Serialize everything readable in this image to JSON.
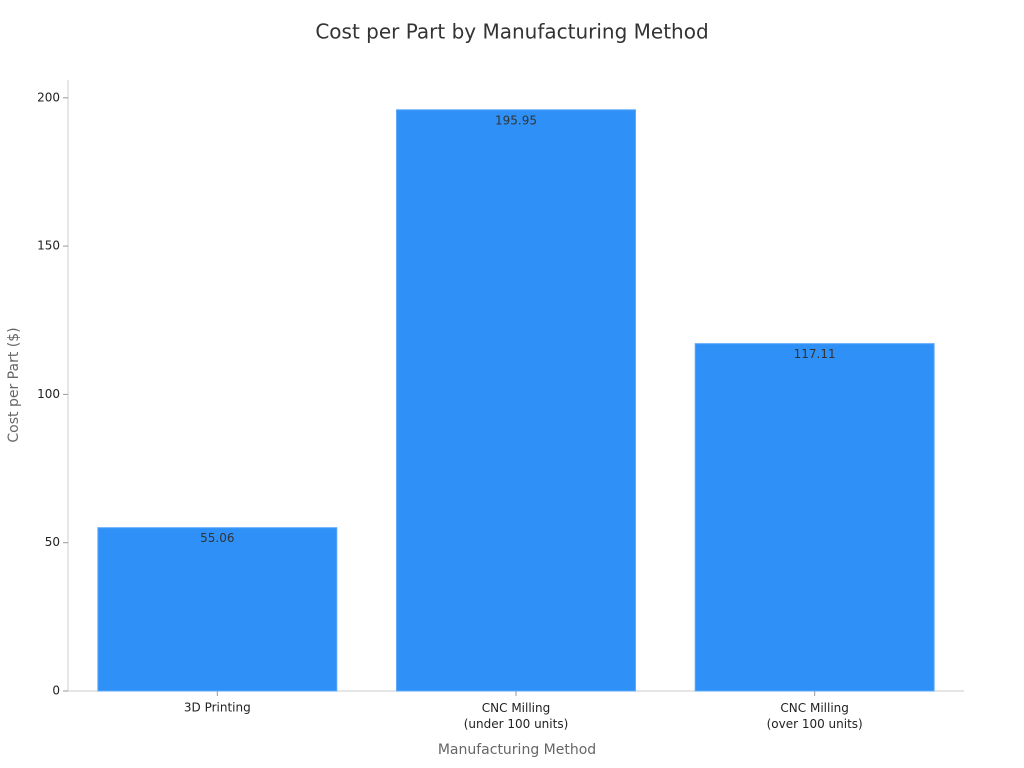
{
  "chart_data": {
    "type": "bar",
    "title": "Cost per Part by Manufacturing Method",
    "x_label": "Manufacturing Method",
    "y_label": "Cost per Part ($)",
    "categories": [
      "3D Printing",
      "CNC Milling\n(under 100 units)",
      "CNC Milling\n(over 100 units)"
    ],
    "values": [
      55.06,
      195.95,
      117.11
    ],
    "color": "#2f91f8",
    "ylim": [
      0,
      206
    ],
    "yticks": [
      0,
      50,
      100,
      150,
      200
    ],
    "grid": false
  }
}
